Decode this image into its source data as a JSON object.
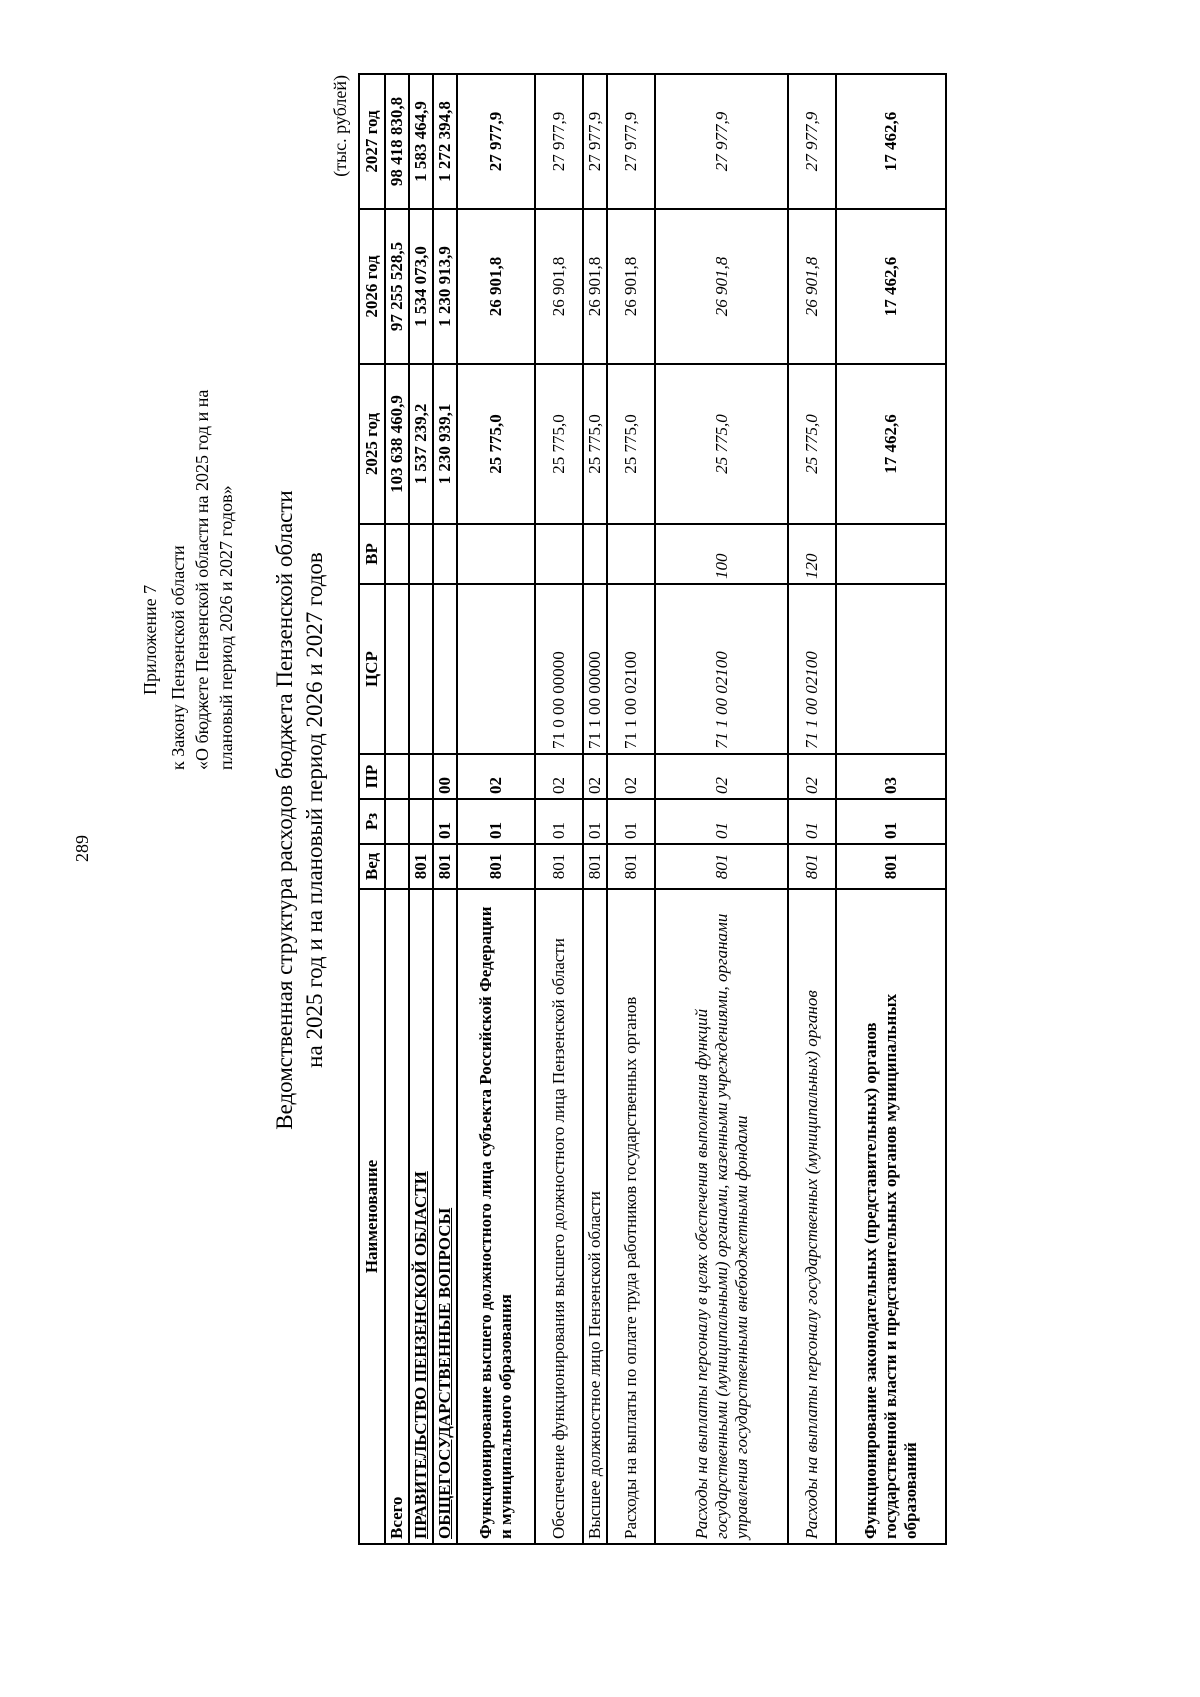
{
  "page_number": "289",
  "annex": {
    "heading": "Приложение 7",
    "lines": [
      "к Закону Пензенской области",
      "«О бюджете Пензенской области на 2025 год и на",
      "плановый период 2026 и 2027 годов»"
    ]
  },
  "title": {
    "line1": "Ведомственная структура расходов бюджета Пензенской области",
    "line2": "на 2025 год и на плановый период 2026 и 2027 годов"
  },
  "units": "(тыс. рублей)",
  "table": {
    "headers": [
      "Наименование",
      "Вед",
      "Рз",
      "ПР",
      "ЦСР",
      "ВР",
      "2025 год",
      "2026 год",
      "2027 год"
    ],
    "rows": [
      {
        "name": "Всего",
        "ved": "",
        "rz": "",
        "pr": "",
        "csr": "",
        "vr": "",
        "y2025": "103 638 460,9",
        "y2026": "97 255 528,5",
        "y2027": "98 418 830,8"
      },
      {
        "name": "ПРАВИТЕЛЬСТВО ПЕНЗЕНСКОЙ ОБЛАСТИ",
        "ved": "801",
        "rz": "",
        "pr": "",
        "csr": "",
        "vr": "",
        "y2025": "1 537 239,2",
        "y2026": "1 534 073,0",
        "y2027": "1 583 464,9"
      },
      {
        "name": "ОБЩЕГОСУДАРСТВЕННЫЕ ВОПРОСЫ",
        "ved": "801",
        "rz": "01",
        "pr": "00",
        "csr": "",
        "vr": "",
        "y2025": "1 230 939,1",
        "y2026": "1 230 913,9",
        "y2027": "1 272 394,8"
      },
      {
        "name": "Функционирование высшего должностного лица субъекта Российской Федерации и муниципального образования",
        "ved": "801",
        "rz": "01",
        "pr": "02",
        "csr": "",
        "vr": "",
        "y2025": "25 775,0",
        "y2026": "26 901,8",
        "y2027": "27 977,9"
      },
      {
        "name": "Обеспечение функционирования высшего должностного лица Пензенской области",
        "ved": "801",
        "rz": "01",
        "pr": "02",
        "csr": "71 0 00 00000",
        "vr": "",
        "y2025": "25 775,0",
        "y2026": "26 901,8",
        "y2027": "27 977,9"
      },
      {
        "name": "Высшее должностное лицо Пензенской области",
        "ved": "801",
        "rz": "01",
        "pr": "02",
        "csr": "71 1 00 00000",
        "vr": "",
        "y2025": "25 775,0",
        "y2026": "26 901,8",
        "y2027": "27 977,9"
      },
      {
        "name": "Расходы на выплаты по оплате труда работников государственных органов",
        "ved": "801",
        "rz": "01",
        "pr": "02",
        "csr": "71 1 00 02100",
        "vr": "",
        "y2025": "25 775,0",
        "y2026": "26 901,8",
        "y2027": "27 977,9"
      },
      {
        "name": "Расходы на выплаты персоналу в целях обеспечения выполнения функций государственными (муниципальными) органами, казенными учреждениями, органами управления государственными внебюджетными фондами",
        "ved": "801",
        "rz": "01",
        "pr": "02",
        "csr": "71 1 00 02100",
        "vr": "100",
        "y2025": "25 775,0",
        "y2026": "26 901,8",
        "y2027": "27 977,9"
      },
      {
        "name": "Расходы на выплаты персоналу государственных (муниципальных) органов",
        "ved": "801",
        "rz": "01",
        "pr": "02",
        "csr": "71 1 00 02100",
        "vr": "120",
        "y2025": "25 775,0",
        "y2026": "26 901,8",
        "y2027": "27 977,9"
      },
      {
        "name": "Функционирование законодательных (представительных) органов государственной власти и представительных органов муниципальных образований",
        "ved": "801",
        "rz": "01",
        "pr": "03",
        "csr": "",
        "vr": "",
        "y2025": "17 462,6",
        "y2026": "17 462,6",
        "y2027": "17 462,6"
      }
    ]
  }
}
